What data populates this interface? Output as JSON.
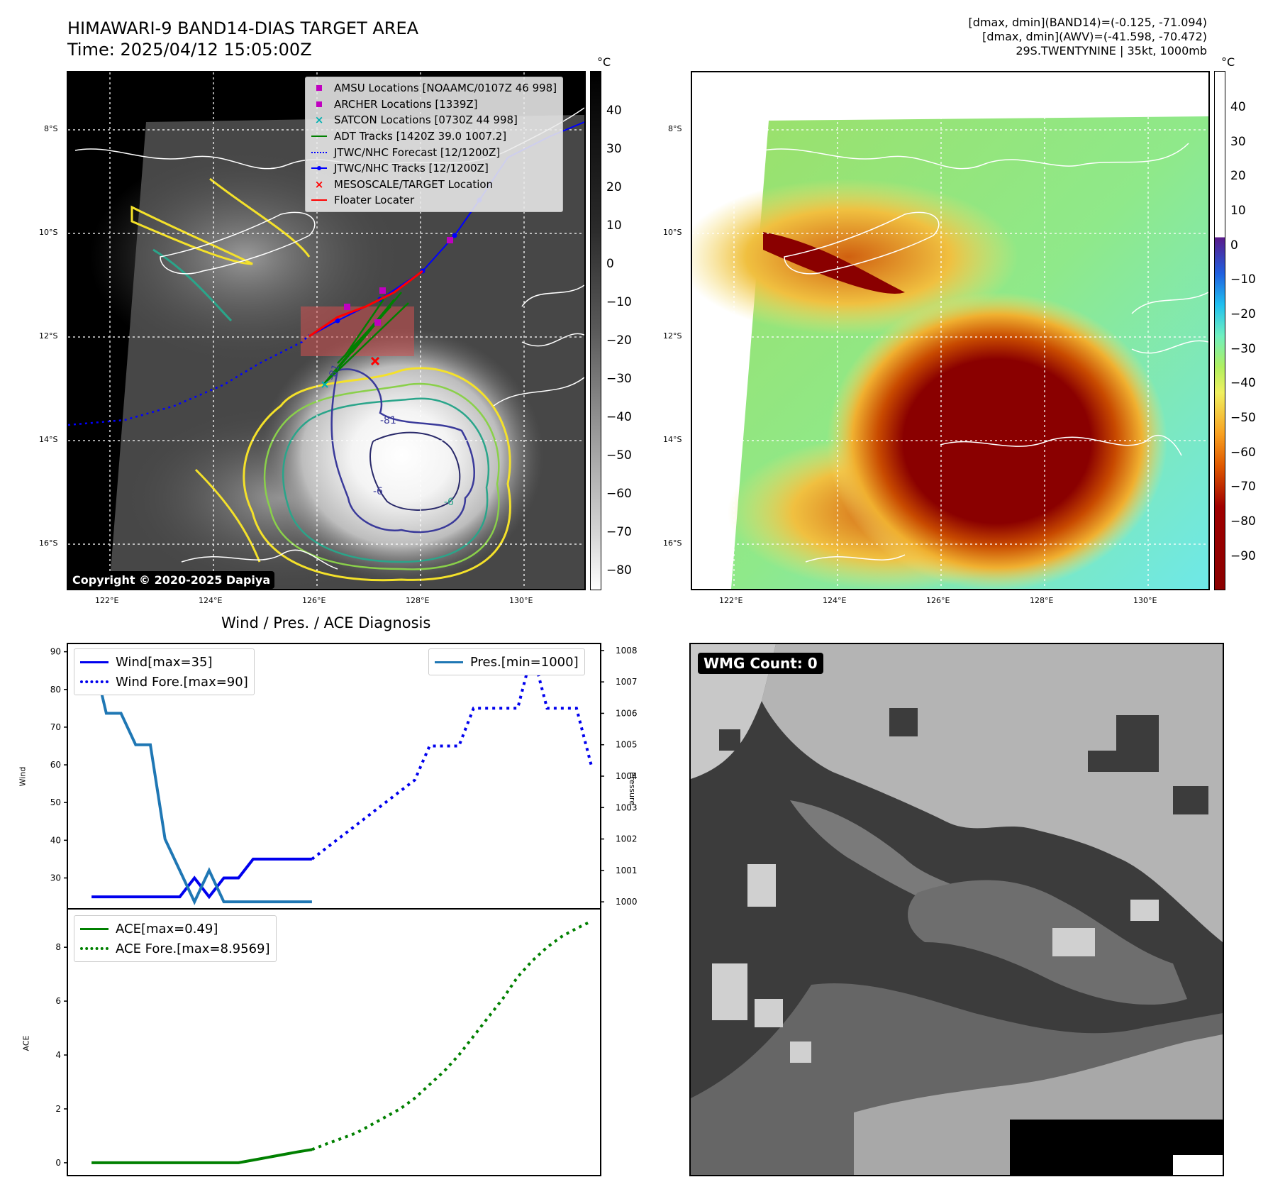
{
  "header": {
    "title": "HIMAWARI-9 BAND14-DIAS TARGET AREA",
    "time": "Time: 2025/04/12 15:05:00Z",
    "info_line1": "[dmax, dmin](BAND14)=(-0.125, -71.094)",
    "info_line2": "[dmax, dmin](AWV)=(-41.598, -70.472)",
    "info_line3": "29S.TWENTYNINE | 35kt, 1000mb"
  },
  "map": {
    "lat_labels": [
      "8°S",
      "10°S",
      "12°S",
      "14°S",
      "16°S"
    ],
    "lon_labels": [
      "122°E",
      "124°E",
      "126°E",
      "128°E",
      "130°E"
    ],
    "copyright": "Copyright © 2020-2025 Dapiya",
    "contour_labels": [
      "-81",
      "-81",
      "-6",
      "-6"
    ],
    "legend": [
      {
        "label": "AMSU Locations [NOAAMC/0107Z 46 998]",
        "color": "#c000c0",
        "marker": "square"
      },
      {
        "label": "ARCHER Locations [1339Z]",
        "color": "#c000c0",
        "marker": "square"
      },
      {
        "label": "SATCON Locations [0730Z 44 998]",
        "color": "#00b0b0",
        "marker": "x"
      },
      {
        "label": "ADT Tracks [1420Z 39.0 1007.2]",
        "color": "#008000",
        "marker": "line"
      },
      {
        "label": "JTWC/NHC Forecast [12/1200Z]",
        "color": "#0000ff",
        "marker": "dotted"
      },
      {
        "label": "JTWC/NHC Tracks [12/1200Z]",
        "color": "#0000ff",
        "marker": "line-dot"
      },
      {
        "label": "MESOSCALE/TARGET Location",
        "color": "#ff0000",
        "marker": "x"
      },
      {
        "label": "Floater Locater",
        "color": "#ff0000",
        "marker": "line"
      }
    ]
  },
  "colorbar_gray": {
    "unit": "°C",
    "ticks": [
      "40",
      "30",
      "20",
      "10",
      "0",
      "−10",
      "−20",
      "−30",
      "−40",
      "−50",
      "−60",
      "−70",
      "−80"
    ]
  },
  "colorbar_awv": {
    "unit": "°C",
    "ticks": [
      "40",
      "30",
      "20",
      "10",
      "0",
      "−10",
      "−20",
      "−30",
      "−40",
      "−50",
      "−60",
      "−70",
      "−80",
      "−90"
    ]
  },
  "diag": {
    "title": "Wind / Pres. / ACE Diagnosis",
    "wmg": "WMG Count: 0",
    "wind_legend": "Wind[max=35]",
    "wind_fore_legend": "Wind Fore.[max=90]",
    "pres_legend": "Pres.[min=1000]",
    "ace_legend": "ACE[max=0.49]",
    "ace_fore_legend": "ACE Fore.[max=8.9569]",
    "wind_ylabel": "Wind",
    "pres_ylabel": "Pressure",
    "ace_ylabel": "ACE"
  },
  "chart_data": [
    {
      "type": "line",
      "ylabel": "Wind",
      "ylim": [
        22,
        92
      ],
      "yticks": [
        30,
        40,
        50,
        60,
        70,
        80,
        90
      ],
      "xlim": [
        -1.6,
        34.6
      ],
      "series": [
        {
          "name": "Wind[max=35]",
          "style": "solid",
          "color": "#0000ee",
          "x": [
            0,
            1,
            2,
            3,
            4,
            5,
            6,
            7,
            8,
            9,
            10,
            11,
            12,
            13,
            14,
            15
          ],
          "values": [
            25,
            25,
            25,
            25,
            25,
            25,
            25,
            30,
            25,
            30,
            30,
            35,
            35,
            35,
            35,
            35
          ]
        },
        {
          "name": "Wind Fore.[max=90]",
          "style": "dotted",
          "color": "#0000ee",
          "x": [
            15,
            16,
            17,
            18,
            19,
            20,
            21,
            22,
            23,
            24,
            25,
            26,
            27,
            28,
            29,
            30,
            31,
            32,
            33,
            34
          ],
          "values": [
            35,
            38,
            41,
            44,
            47,
            50,
            53,
            56,
            65,
            65,
            65,
            75,
            75,
            75,
            75,
            90,
            75,
            75,
            75,
            60
          ]
        }
      ]
    },
    {
      "type": "line",
      "ylabel": "Pressure",
      "ylim": [
        999.8,
        1008.2
      ],
      "yticks": [
        1000,
        1001,
        1002,
        1003,
        1004,
        1005,
        1006,
        1007,
        1008
      ],
      "xlim": [
        -1.6,
        34.6
      ],
      "series": [
        {
          "name": "Pres.[min=1000]",
          "style": "solid",
          "color": "#1f77b4",
          "x": [
            0,
            1,
            2,
            3,
            4,
            5,
            6,
            7,
            8,
            9,
            10,
            11,
            12,
            13,
            14,
            15
          ],
          "values": [
            1008,
            1006,
            1006,
            1005,
            1005,
            1002,
            1001,
            1000,
            1001,
            1000,
            1000,
            1000,
            1000,
            1000,
            1000,
            1000
          ]
        }
      ]
    },
    {
      "type": "line",
      "ylabel": "ACE",
      "ylim": [
        -0.45,
        9.4
      ],
      "yticks": [
        0,
        2,
        4,
        6,
        8
      ],
      "xlim": [
        -1.6,
        34.6
      ],
      "series": [
        {
          "name": "ACE[max=0.49]",
          "style": "solid",
          "color": "#008000",
          "x": [
            0,
            1,
            2,
            3,
            4,
            5,
            6,
            7,
            8,
            9,
            10,
            11,
            12,
            13,
            14,
            15
          ],
          "values": [
            0,
            0,
            0,
            0,
            0,
            0,
            0,
            0,
            0,
            0,
            0,
            0.1,
            0.2,
            0.3,
            0.4,
            0.49
          ]
        },
        {
          "name": "ACE Fore.[max=8.9569]",
          "style": "dotted",
          "color": "#008000",
          "x": [
            15,
            16,
            17,
            18,
            19,
            20,
            21,
            22,
            23,
            24,
            25,
            26,
            27,
            28,
            29,
            30,
            31,
            32,
            33,
            34
          ],
          "values": [
            0.49,
            0.7,
            0.9,
            1.1,
            1.4,
            1.7,
            2.0,
            2.4,
            2.9,
            3.4,
            4.0,
            4.7,
            5.4,
            6.1,
            6.9,
            7.5,
            8.0,
            8.4,
            8.7,
            8.96
          ]
        }
      ]
    }
  ]
}
